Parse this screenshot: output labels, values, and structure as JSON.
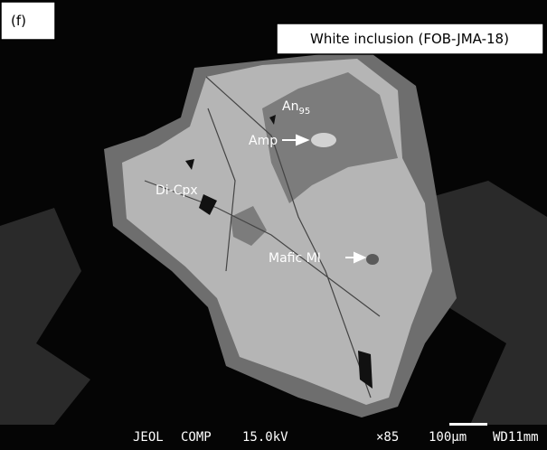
{
  "panel_label": "(f)",
  "title": "White inclusion (FOB-JMA-18)",
  "labels": [
    {
      "text": "An",
      "subscript": "95"
    },
    {
      "text": "Amp"
    },
    {
      "text": "Di-Cpx"
    },
    {
      "text": "Mafic MI"
    }
  ],
  "info_bar": [
    "JEOL",
    "COMP",
    "15.0kV",
    "×85",
    "100µm",
    "WD11mm"
  ]
}
